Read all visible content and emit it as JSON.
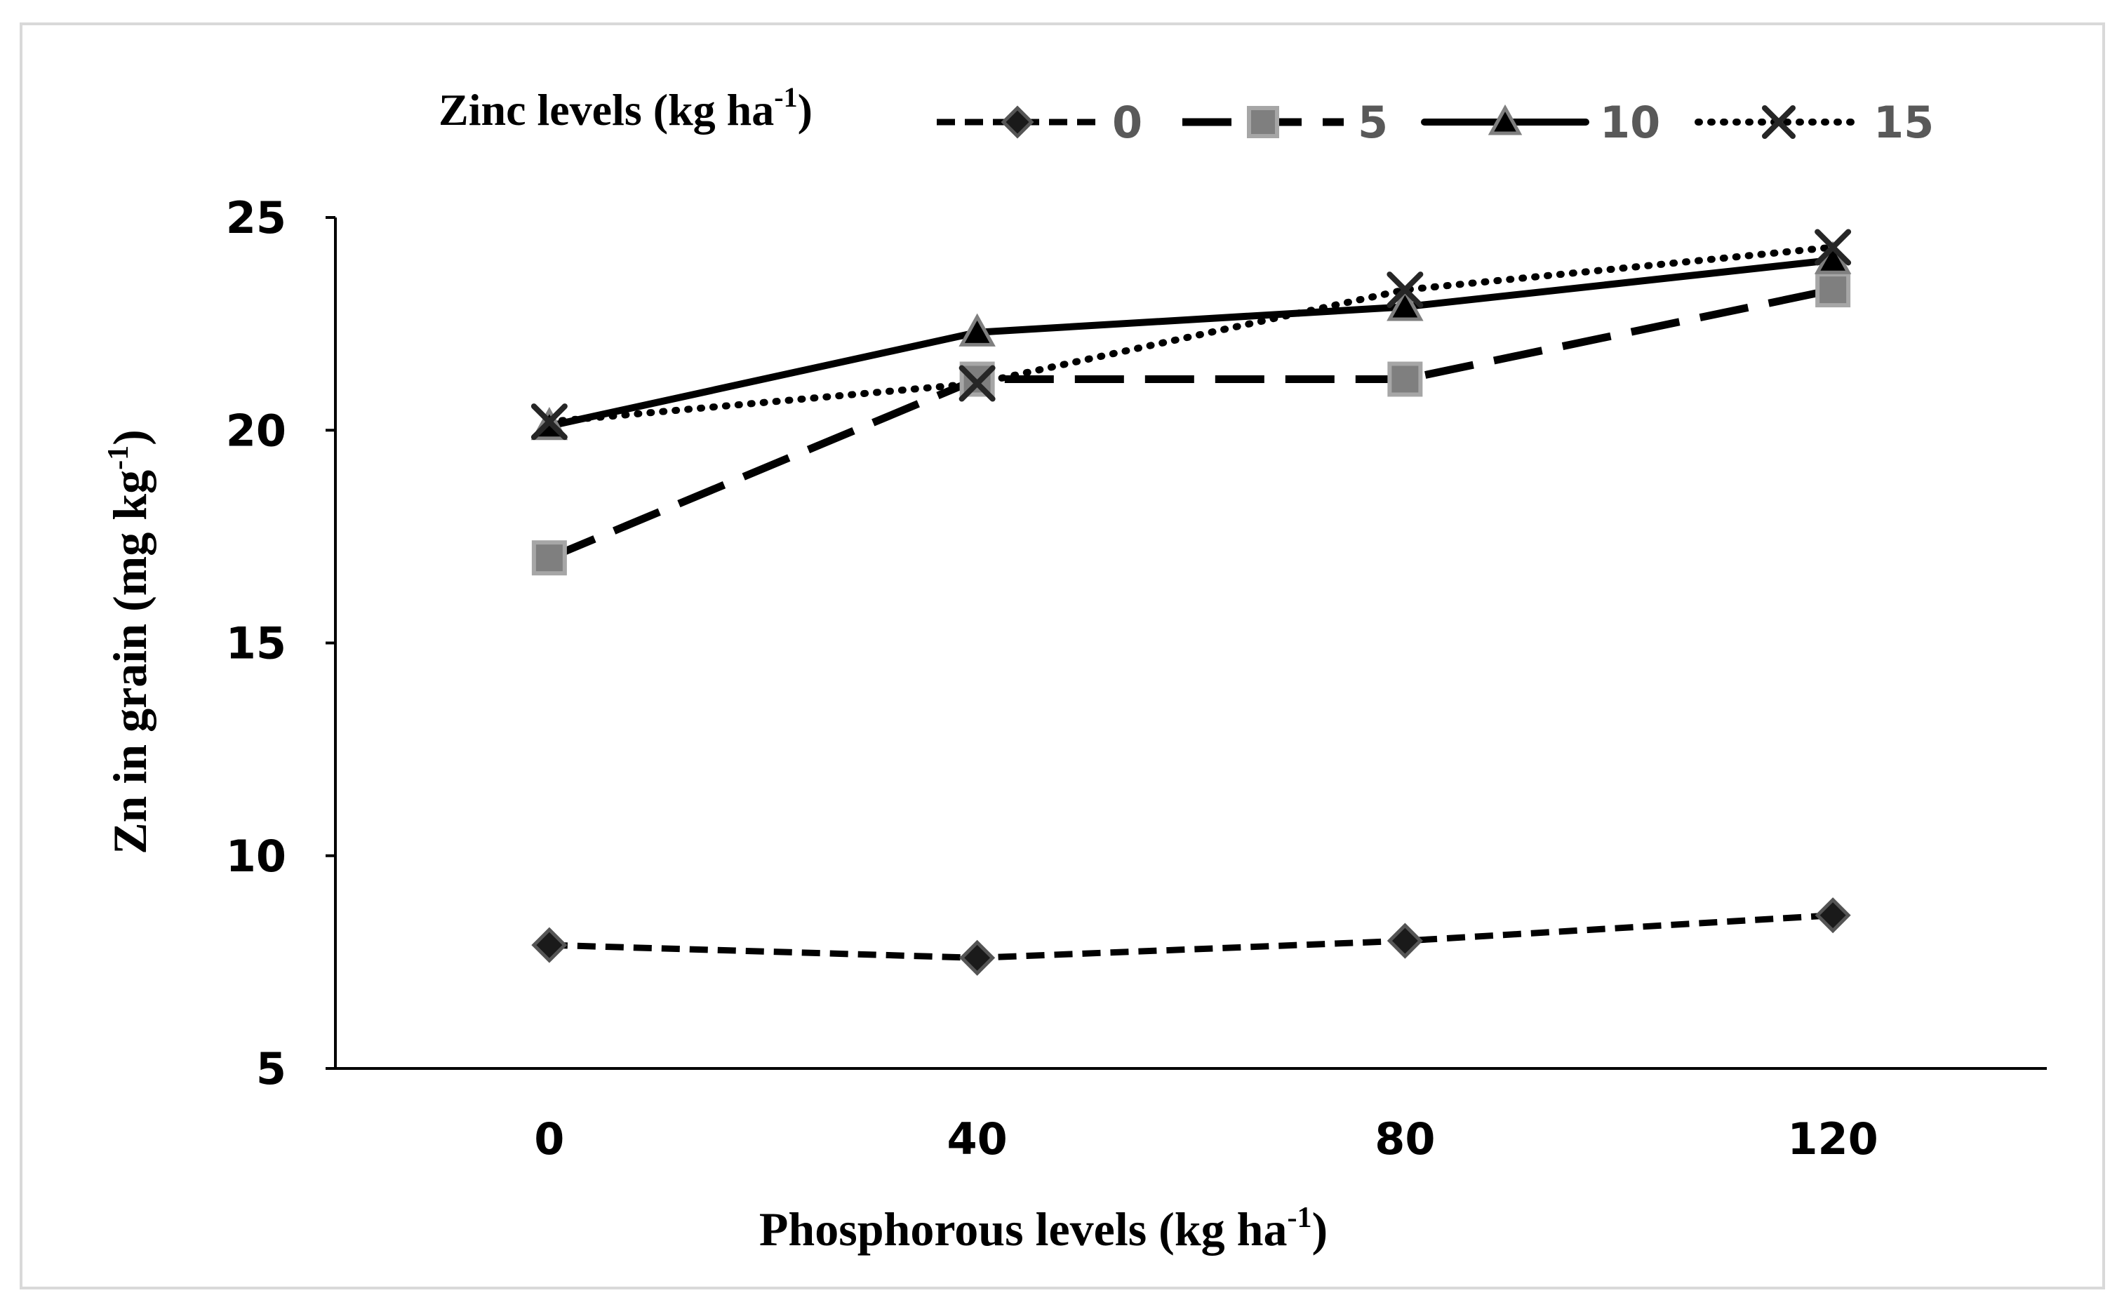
{
  "chart_data": {
    "type": "line",
    "title": "",
    "xlabel": "Phosphorous levels (kg ha",
    "xlabel_sup": "-1",
    "xlabel_end": ")",
    "ylabel": "Zn in grain (mg kg",
    "ylabel_sup": "-1",
    "ylabel_end": ")",
    "categories": [
      "0",
      "40",
      "80",
      "120"
    ],
    "x": [
      0,
      40,
      80,
      120
    ],
    "xlim": [
      -20,
      140
    ],
    "ylim": [
      5,
      25
    ],
    "yticks": [
      5,
      10,
      15,
      20,
      25
    ],
    "grid": false,
    "legend": {
      "title": "Zinc levels (kg ha",
      "title_sup": "-1",
      "title_end": ")",
      "placement": "top"
    },
    "series": [
      {
        "name": "0",
        "values": [
          7.9,
          7.6,
          8.0,
          8.6
        ],
        "line": "short-dash",
        "marker": "diamond",
        "color": "#000000",
        "marker_fill": "#1a1a1a",
        "marker_stroke": "#555555"
      },
      {
        "name": "5",
        "values": [
          17.0,
          21.2,
          21.2,
          23.3
        ],
        "line": "long-dash",
        "marker": "square",
        "color": "#000000",
        "marker_fill": "#7f7f7f",
        "marker_stroke": "#a6a6a6"
      },
      {
        "name": "10",
        "values": [
          20.1,
          22.3,
          22.9,
          24.0
        ],
        "line": "solid",
        "marker": "triangle",
        "color": "#000000",
        "marker_fill": "#000000",
        "marker_stroke": "#7f7f7f"
      },
      {
        "name": "15",
        "values": [
          20.2,
          21.1,
          23.3,
          24.3
        ],
        "line": "dotted",
        "marker": "x",
        "color": "#000000",
        "marker_fill": "none",
        "marker_stroke": "#262626"
      }
    ],
    "legend_text_color": "#595959"
  }
}
